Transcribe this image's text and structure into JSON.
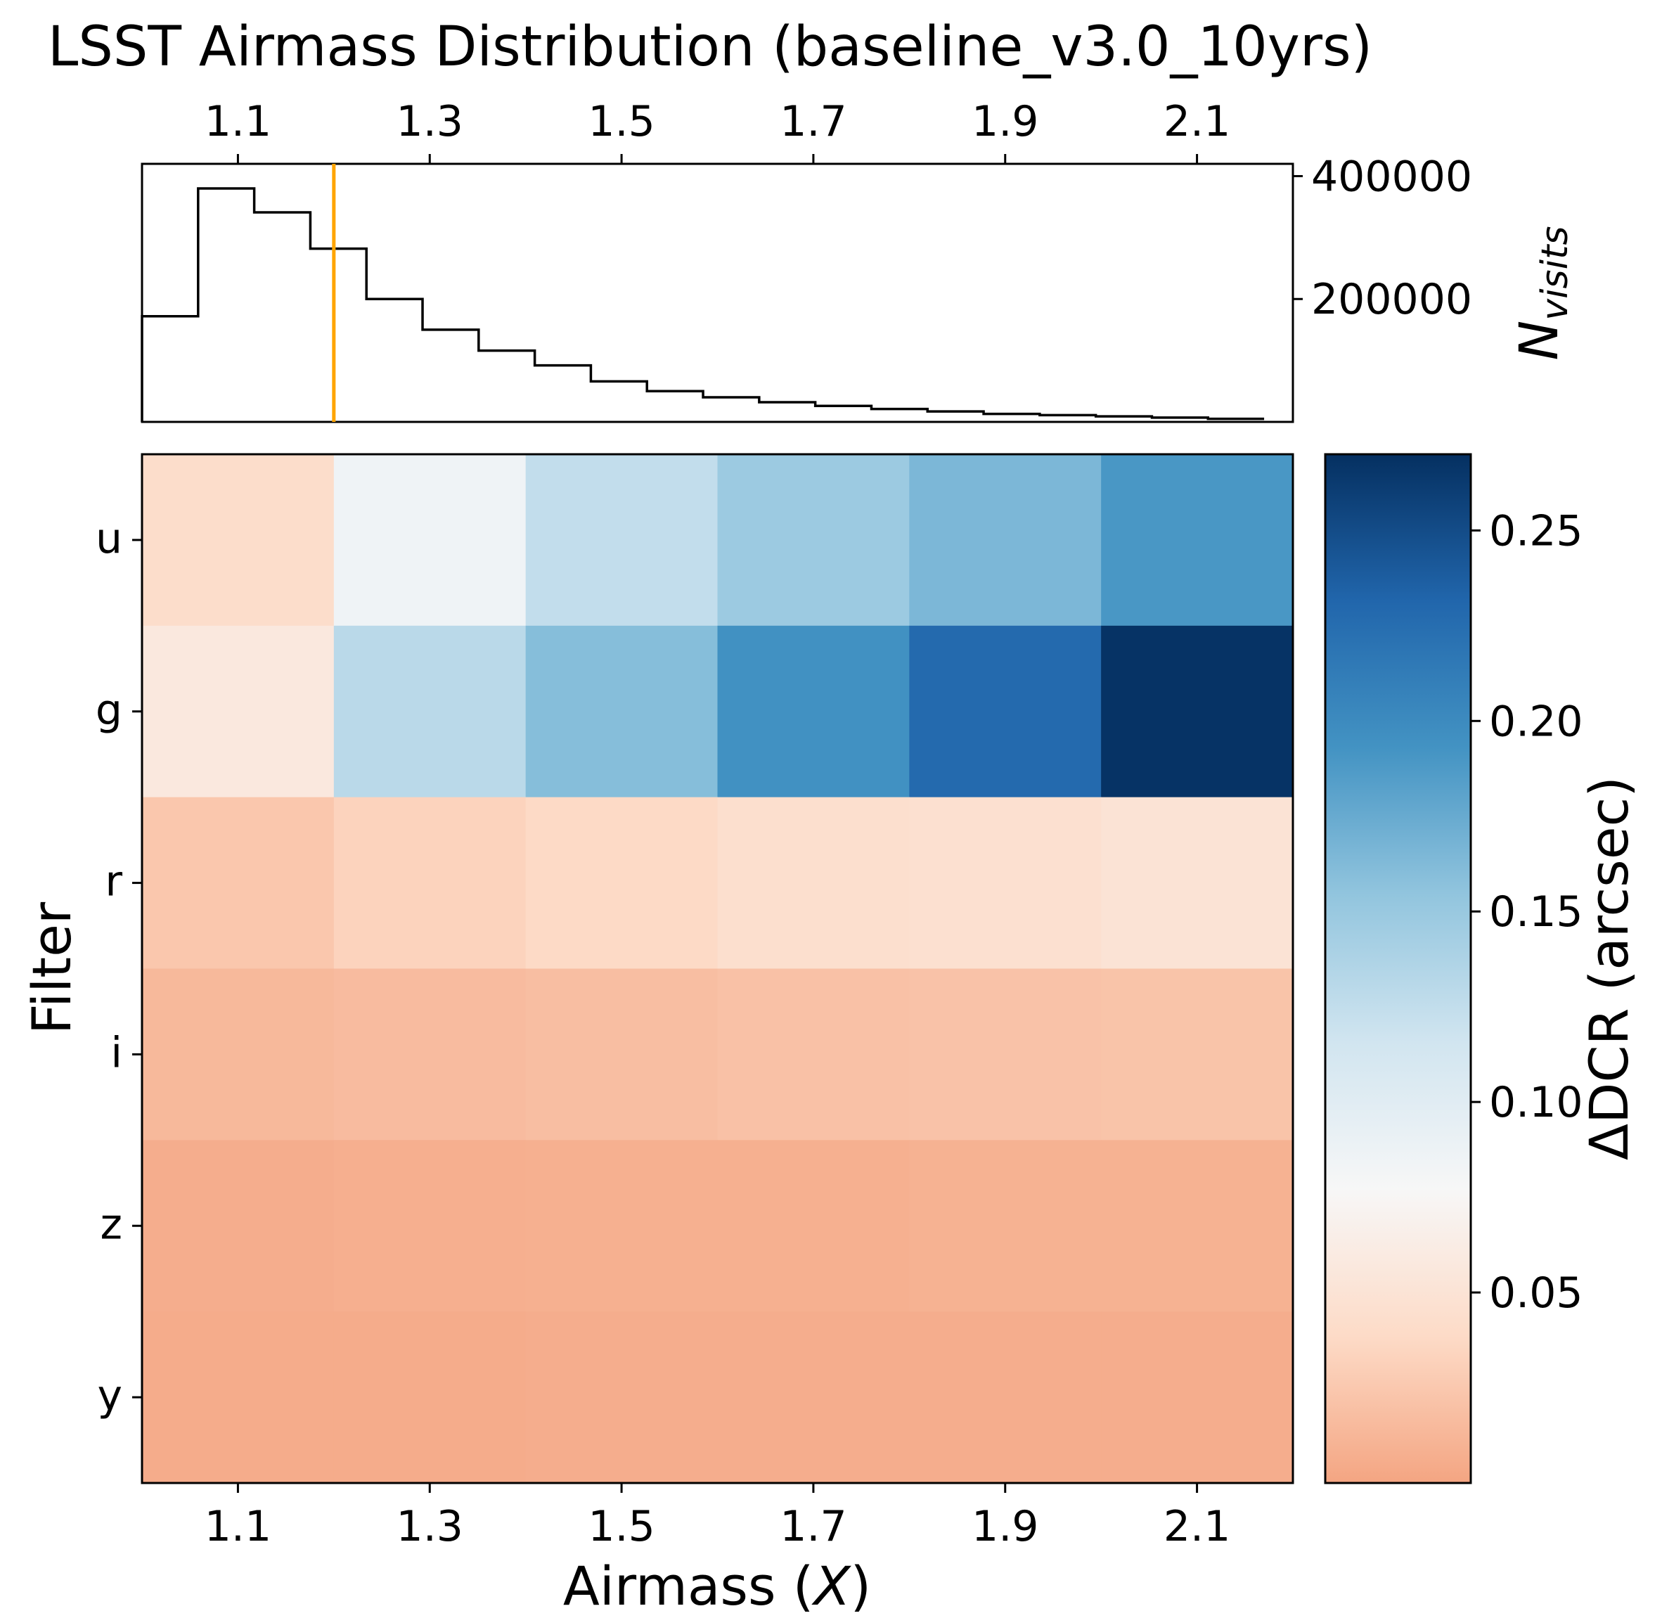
{
  "chart_data": [
    {
      "type": "histogram",
      "title": "LSST Airmass Distribution (baseline_v3.0_10yrs)",
      "ylabel": "N",
      "ylabel_subscript": "visits",
      "xlim": [
        1.0,
        2.2
      ],
      "ylim": [
        0,
        420000
      ],
      "x_ticks": [
        "1.1",
        "1.3",
        "1.5",
        "1.7",
        "1.9",
        "2.1"
      ],
      "x_tick_values": [
        1.1,
        1.3,
        1.5,
        1.7,
        1.9,
        2.1
      ],
      "y_ticks": [
        "200000",
        "400000"
      ],
      "y_tick_values": [
        200000,
        400000
      ],
      "bin_width": 0.0585,
      "bins_start": 1.0,
      "counts": [
        172000,
        380000,
        341000,
        282000,
        200000,
        150000,
        116000,
        92000,
        66000,
        50000,
        40000,
        32000,
        26000,
        21000,
        17000,
        13000,
        11000,
        9000,
        7000,
        5000
      ],
      "marker_line": {
        "x": 1.2,
        "color": "#ffa500"
      },
      "line_color": "#000000"
    },
    {
      "type": "heatmap",
      "xlabel": "Airmass (",
      "xlabel_var": "X",
      "xlabel_end": ")",
      "ylabel": "Filter",
      "xlim": [
        1.0,
        2.2
      ],
      "x_ticks": [
        "1.1",
        "1.3",
        "1.5",
        "1.7",
        "1.9",
        "2.1"
      ],
      "x_tick_values": [
        1.1,
        1.3,
        1.5,
        1.7,
        1.9,
        2.1
      ],
      "x_edges": [
        1.0,
        1.2,
        1.4,
        1.6,
        1.8,
        2.0,
        2.2
      ],
      "rows": [
        "u",
        "g",
        "r",
        "i",
        "z",
        "y"
      ],
      "values": [
        [
          0.042,
          0.085,
          0.125,
          0.148,
          0.165,
          0.19
        ],
        [
          0.057,
          0.13,
          0.16,
          0.195,
          0.228,
          0.268
        ],
        [
          0.024,
          0.033,
          0.038,
          0.044,
          0.046,
          0.05
        ],
        [
          0.014,
          0.016,
          0.018,
          0.02,
          0.021,
          0.022
        ],
        [
          0.006,
          0.007,
          0.008,
          0.008,
          0.009,
          0.009
        ],
        [
          0.005,
          0.005,
          0.006,
          0.006,
          0.006,
          0.006
        ]
      ],
      "colorbar": {
        "label": "ΔDCR (arcsec)",
        "vmin": 0.0,
        "vmax": 0.27,
        "ticks": [
          "0.05",
          "0.10",
          "0.15",
          "0.20",
          "0.25"
        ],
        "tick_values": [
          0.05,
          0.1,
          0.15,
          0.2,
          0.25
        ],
        "colormap": "RdBu (upper half)",
        "stops": [
          "#f4a582",
          "#fddbc7",
          "#f7f7f7",
          "#d1e5f0",
          "#92c5de",
          "#4393c3",
          "#2166ac",
          "#053061"
        ]
      }
    }
  ]
}
